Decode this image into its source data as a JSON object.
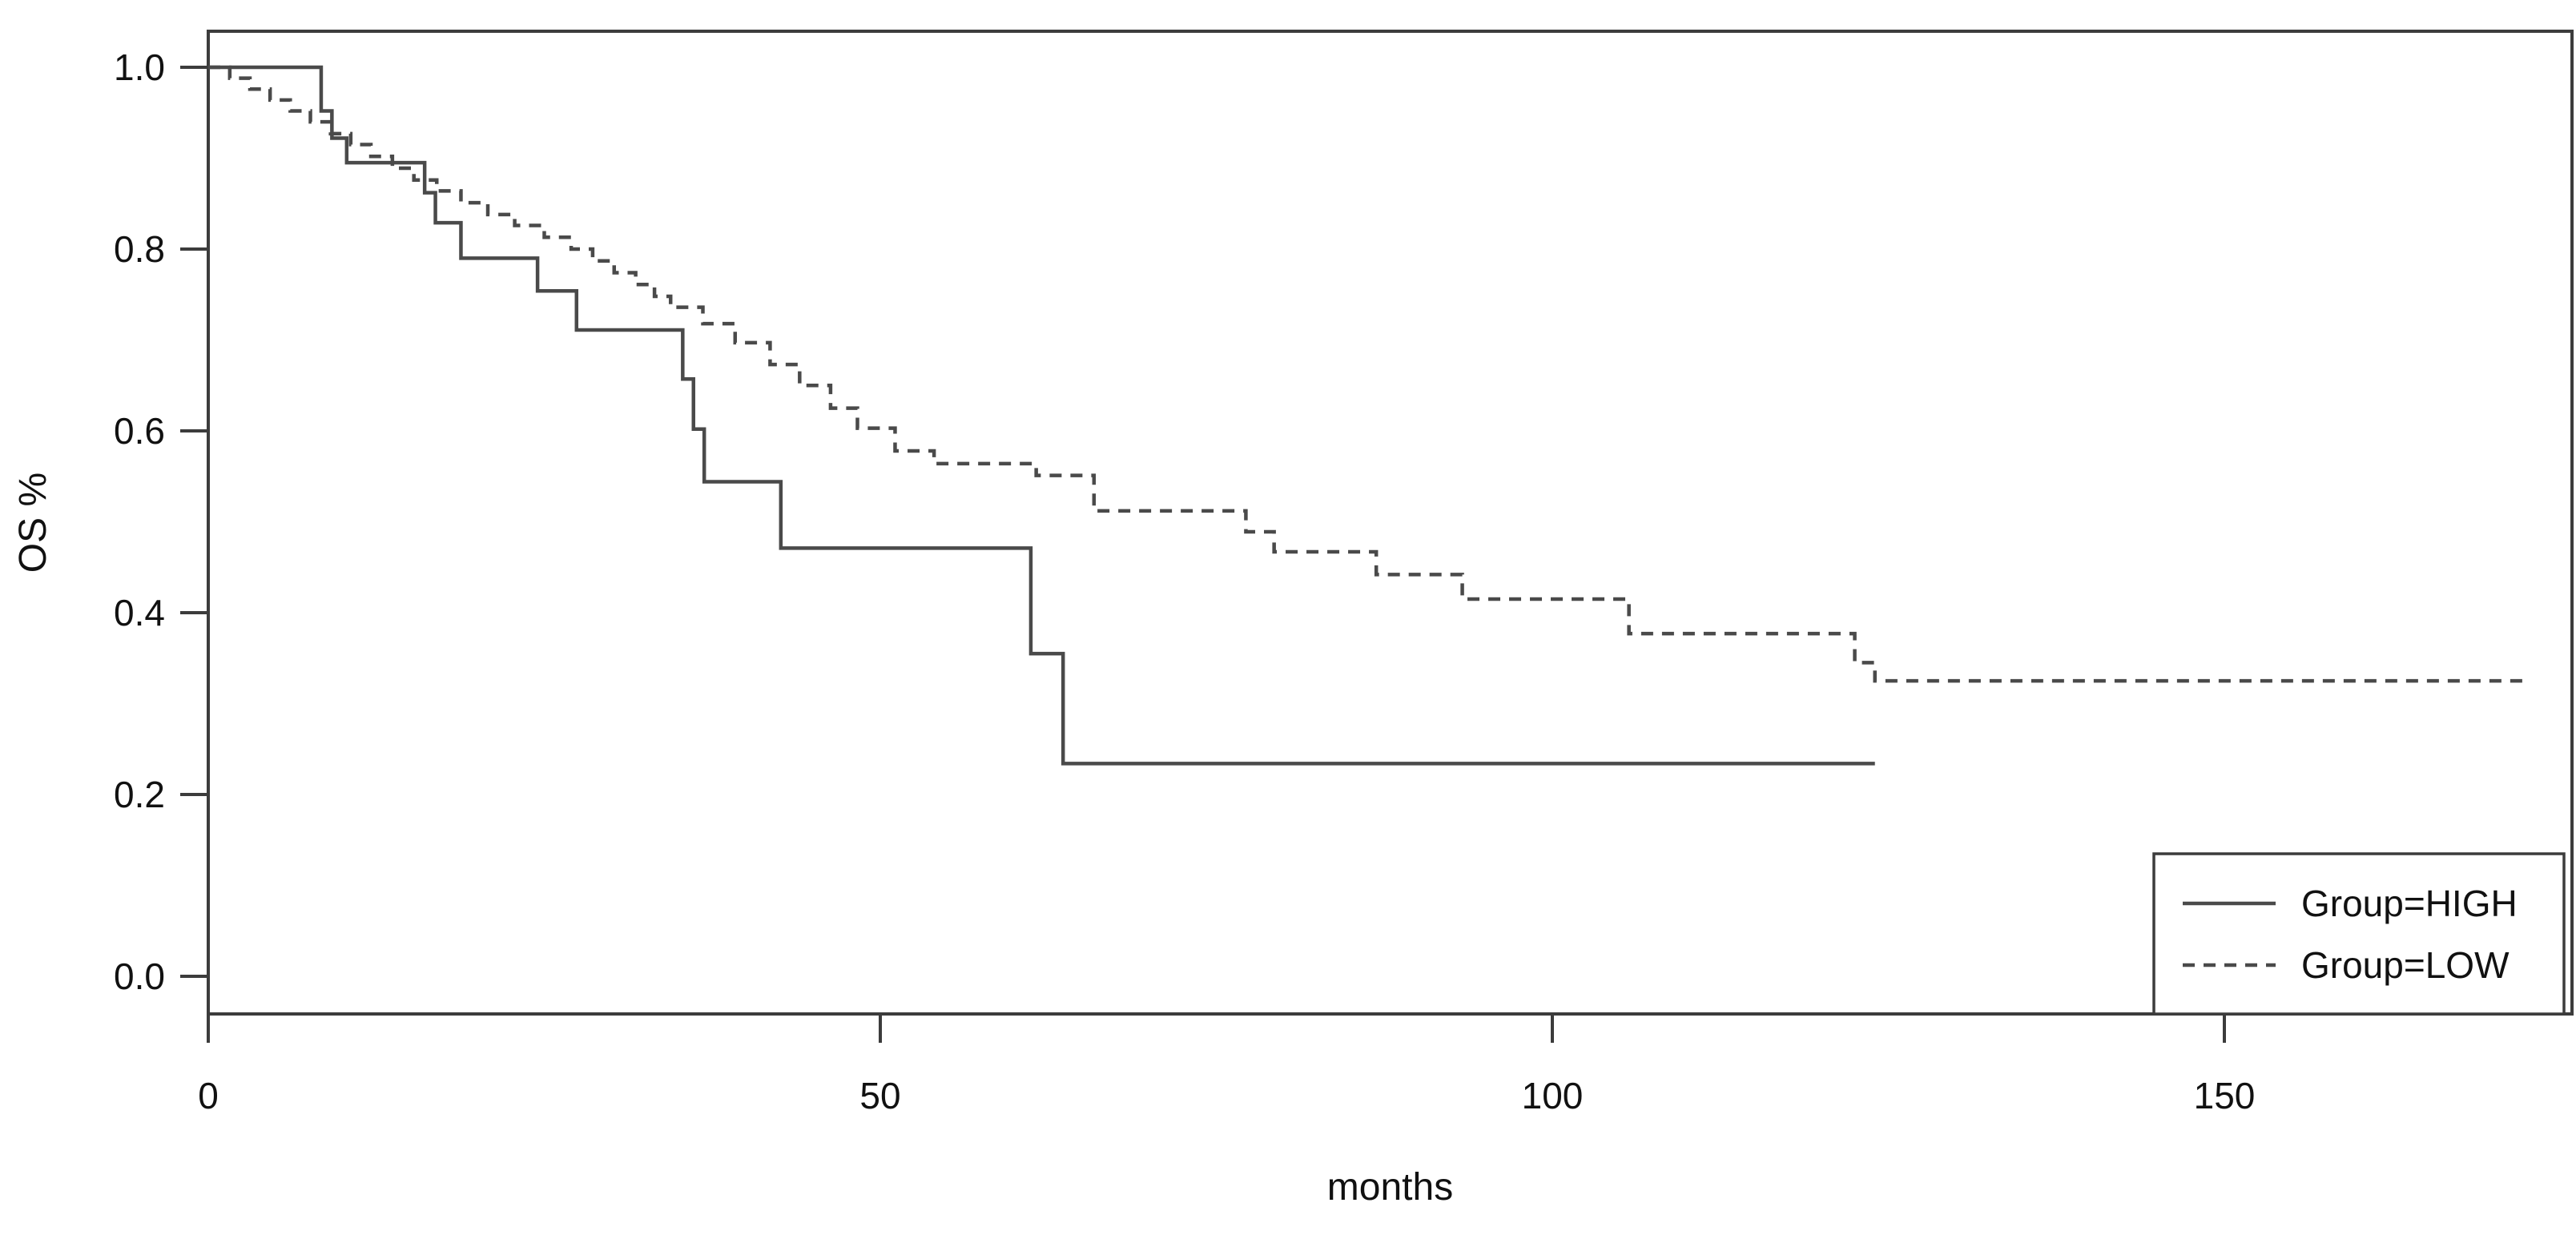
{
  "figure": {
    "background": "#ffffff",
    "text_color": "#111111",
    "axis_color": "#3c3c3c",
    "curve_color": "#4a4a4a"
  },
  "chart_data": {
    "type": "line",
    "subtype": "kaplan-meier-step",
    "title": "",
    "xlabel": "months",
    "ylabel": "OS %",
    "xlim": [
      0,
      176
    ],
    "ylim": [
      -0.04,
      1.04
    ],
    "grid": false,
    "x_ticks": [
      {
        "value": 0,
        "label": "0"
      },
      {
        "value": 50,
        "label": "50"
      },
      {
        "value": 100,
        "label": "100"
      },
      {
        "value": 150,
        "label": "150"
      }
    ],
    "y_ticks": [
      {
        "value": 1.0,
        "label": "1.0"
      },
      {
        "value": 0.8,
        "label": "0.8"
      },
      {
        "value": 0.6,
        "label": "0.6"
      },
      {
        "value": 0.4,
        "label": "0.4"
      },
      {
        "value": 0.2,
        "label": "0.2"
      },
      {
        "value": 0.0,
        "label": "0.0"
      }
    ],
    "legend": {
      "position": "bottom-right",
      "entries": [
        {
          "label": "Group=HIGH",
          "line_style": "solid"
        },
        {
          "label": "Group=LOW",
          "line_style": "dashed"
        }
      ]
    },
    "series": [
      {
        "name": "Group=HIGH",
        "style": "solid",
        "end_time": 124,
        "steps": [
          [
            0,
            1.0
          ],
          [
            8.4,
            0.952
          ],
          [
            9.2,
            0.922
          ],
          [
            10.3,
            0.895
          ],
          [
            16.1,
            0.862
          ],
          [
            16.9,
            0.829
          ],
          [
            18.8,
            0.79
          ],
          [
            24.5,
            0.754
          ],
          [
            27.4,
            0.711
          ],
          [
            35.3,
            0.657
          ],
          [
            36.1,
            0.602
          ],
          [
            36.9,
            0.544
          ],
          [
            42.6,
            0.471
          ],
          [
            61.2,
            0.355
          ],
          [
            63.6,
            0.234
          ]
        ]
      },
      {
        "name": "Group=LOW",
        "style": "dashed",
        "end_time": 172.4,
        "steps": [
          [
            0,
            1.0
          ],
          [
            1.6,
            0.988
          ],
          [
            3.1,
            0.976
          ],
          [
            4.6,
            0.964
          ],
          [
            6.1,
            0.952
          ],
          [
            7.6,
            0.94
          ],
          [
            9.1,
            0.927
          ],
          [
            10.6,
            0.915
          ],
          [
            12.1,
            0.902
          ],
          [
            13.7,
            0.889
          ],
          [
            15.3,
            0.876
          ],
          [
            17.0,
            0.864
          ],
          [
            18.8,
            0.851
          ],
          [
            20.8,
            0.838
          ],
          [
            22.8,
            0.826
          ],
          [
            25.0,
            0.813
          ],
          [
            27.0,
            0.8
          ],
          [
            28.6,
            0.787
          ],
          [
            30.2,
            0.774
          ],
          [
            31.8,
            0.761
          ],
          [
            33.2,
            0.748
          ],
          [
            34.4,
            0.736
          ],
          [
            36.8,
            0.718
          ],
          [
            39.2,
            0.697
          ],
          [
            41.8,
            0.673
          ],
          [
            44.0,
            0.65
          ],
          [
            46.3,
            0.625
          ],
          [
            48.3,
            0.603
          ],
          [
            51.1,
            0.578
          ],
          [
            54.0,
            0.564
          ],
          [
            61.6,
            0.551
          ],
          [
            65.9,
            0.512
          ],
          [
            77.2,
            0.489
          ],
          [
            79.3,
            0.467
          ],
          [
            86.9,
            0.442
          ],
          [
            93.3,
            0.415
          ],
          [
            105.7,
            0.377
          ],
          [
            122.5,
            0.345
          ],
          [
            124.0,
            0.325
          ]
        ]
      }
    ]
  }
}
